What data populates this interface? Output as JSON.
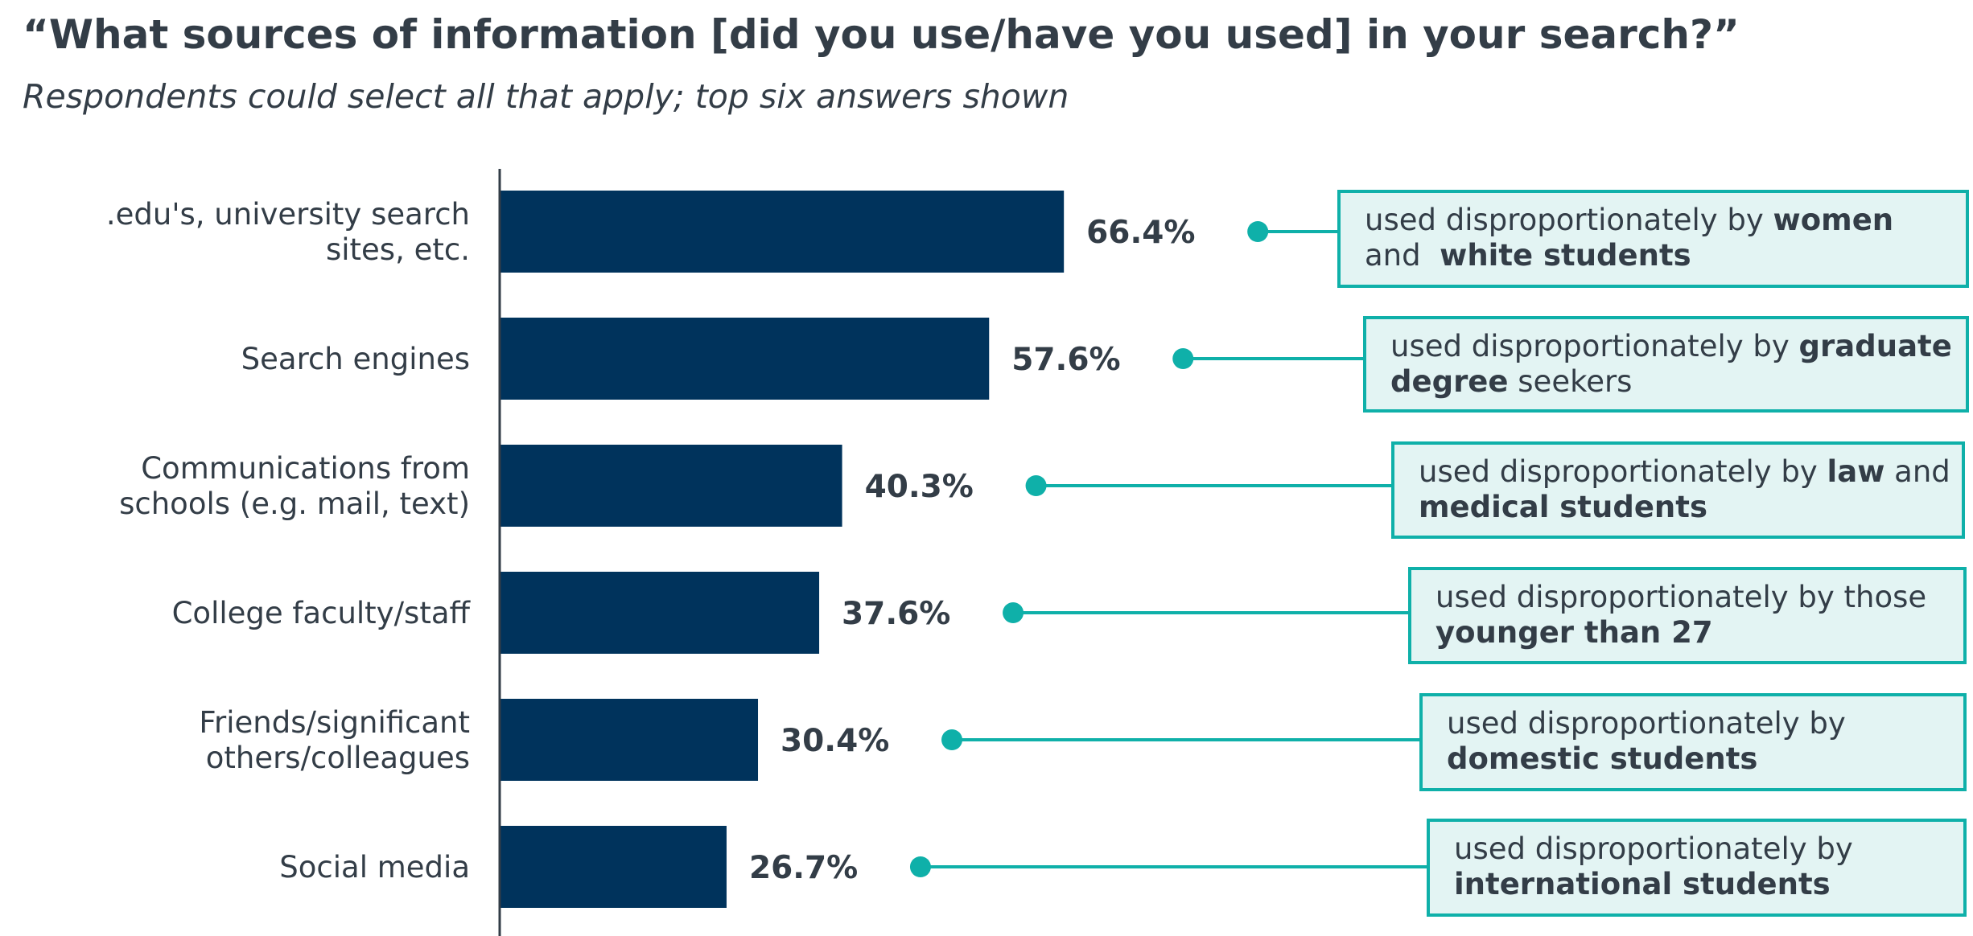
{
  "header": {
    "title": "“What sources of information [did you use/have you used] in your search?”",
    "subtitle": "Respondents could select all that apply; top six answers shown"
  },
  "colors": {
    "bar": "#00335c",
    "accent": "#0fb0a9",
    "callout_bg": "#e3f4f3",
    "text": "#333d47",
    "axis": "#333d47"
  },
  "chart_data": {
    "type": "bar",
    "orientation": "horizontal",
    "title": "“What sources of information [did you use/have you used] in your search?”",
    "subtitle": "Respondents could select all that apply; top six answers shown",
    "categories": [
      [
        ".edu's, university search",
        "sites, etc."
      ],
      [
        "Search engines"
      ],
      [
        "Communications from",
        "schools (e.g. mail, text)"
      ],
      [
        "College faculty/staff"
      ],
      [
        "Friends/significant",
        "others/colleagues"
      ],
      [
        "Social media"
      ]
    ],
    "values": [
      66.4,
      57.6,
      40.3,
      37.6,
      30.4,
      26.7
    ],
    "value_labels": [
      "66.4%",
      "57.6%",
      "40.3%",
      "37.6%",
      "30.4%",
      "26.7%"
    ],
    "unit": "%",
    "grid": false,
    "annotations": [
      {
        "lines": [
          [
            {
              "t": "used disproportionately by "
            },
            {
              "t": "women",
              "b": true
            }
          ],
          [
            {
              "t": "and  "
            },
            {
              "t": "white students",
              "b": true
            }
          ]
        ]
      },
      {
        "lines": [
          [
            {
              "t": "used disproportionately by "
            },
            {
              "t": "graduate",
              "b": true
            }
          ],
          [
            {
              "t": "degree",
              "b": true
            },
            {
              "t": " seekers"
            }
          ]
        ]
      },
      {
        "lines": [
          [
            {
              "t": "used disproportionately by "
            },
            {
              "t": "law",
              "b": true
            },
            {
              "t": " and"
            }
          ],
          [
            {
              "t": "medical students",
              "b": true
            }
          ]
        ]
      },
      {
        "lines": [
          [
            {
              "t": "used disproportionately by those"
            }
          ],
          [
            {
              "t": "younger than 27",
              "b": true
            }
          ]
        ]
      },
      {
        "lines": [
          [
            {
              "t": "used disproportionately by"
            }
          ],
          [
            {
              "t": "domestic students",
              "b": true
            }
          ]
        ]
      },
      {
        "lines": [
          [
            {
              "t": "used disproportionately by"
            }
          ],
          [
            {
              "t": "international students",
              "b": true
            }
          ]
        ]
      }
    ]
  }
}
